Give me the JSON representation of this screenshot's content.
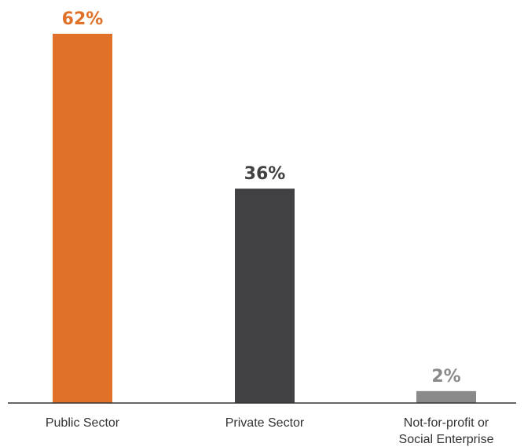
{
  "chart_data": {
    "type": "bar",
    "categories": [
      [
        "Public Sector"
      ],
      [
        "Private Sector"
      ],
      [
        "Not-for-profit or",
        "Social Enterprise"
      ]
    ],
    "values": [
      62,
      36,
      2
    ],
    "value_labels": [
      "62%",
      "36%",
      "2%"
    ],
    "colors": [
      "#e07128",
      "#414143",
      "#8a8a8a"
    ],
    "label_colors": [
      "#e07128",
      "#414143",
      "#8a8a8a"
    ],
    "axis_color": "#333333",
    "title": "",
    "xlabel": "",
    "ylabel": "",
    "ylim": [
      0,
      62
    ],
    "grid": false,
    "legend": "none"
  }
}
